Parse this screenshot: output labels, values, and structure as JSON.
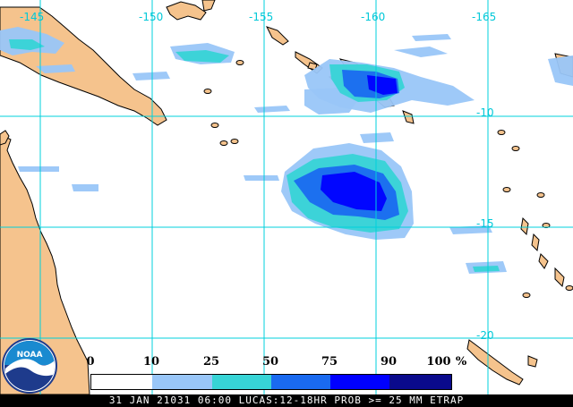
{
  "map": {
    "longitude_labels": [
      "-145",
      "-150",
      "-155",
      "-160",
      "-165"
    ],
    "latitude_labels": [
      "-10",
      "-15",
      "-20"
    ],
    "colors": {
      "ocean": "#ffffff",
      "land": "#f5c38d",
      "coast": "#000000",
      "grid": "#00d0dc"
    },
    "features": [
      "Papua New Guinea",
      "Solomon Islands",
      "Vanuatu",
      "New Caledonia",
      "Queensland coast"
    ]
  },
  "legend": {
    "ticks": [
      "0",
      "10",
      "25",
      "50",
      "75",
      "90",
      "100"
    ],
    "unit": "%",
    "colors": [
      "#ffffff",
      "#99c6f8",
      "#37d4d6",
      "#1a6af0",
      "#0000ff",
      "#0a0a8c"
    ]
  },
  "caption": "31 JAN 21031 06:00 LUCAS:12-18HR PROB >= 25 MM ETRAP",
  "logo": {
    "text": "NOAA",
    "colors": {
      "top": "#1a8ad0",
      "bottom": "#1e3b8c",
      "bird": "#ffffff"
    }
  }
}
